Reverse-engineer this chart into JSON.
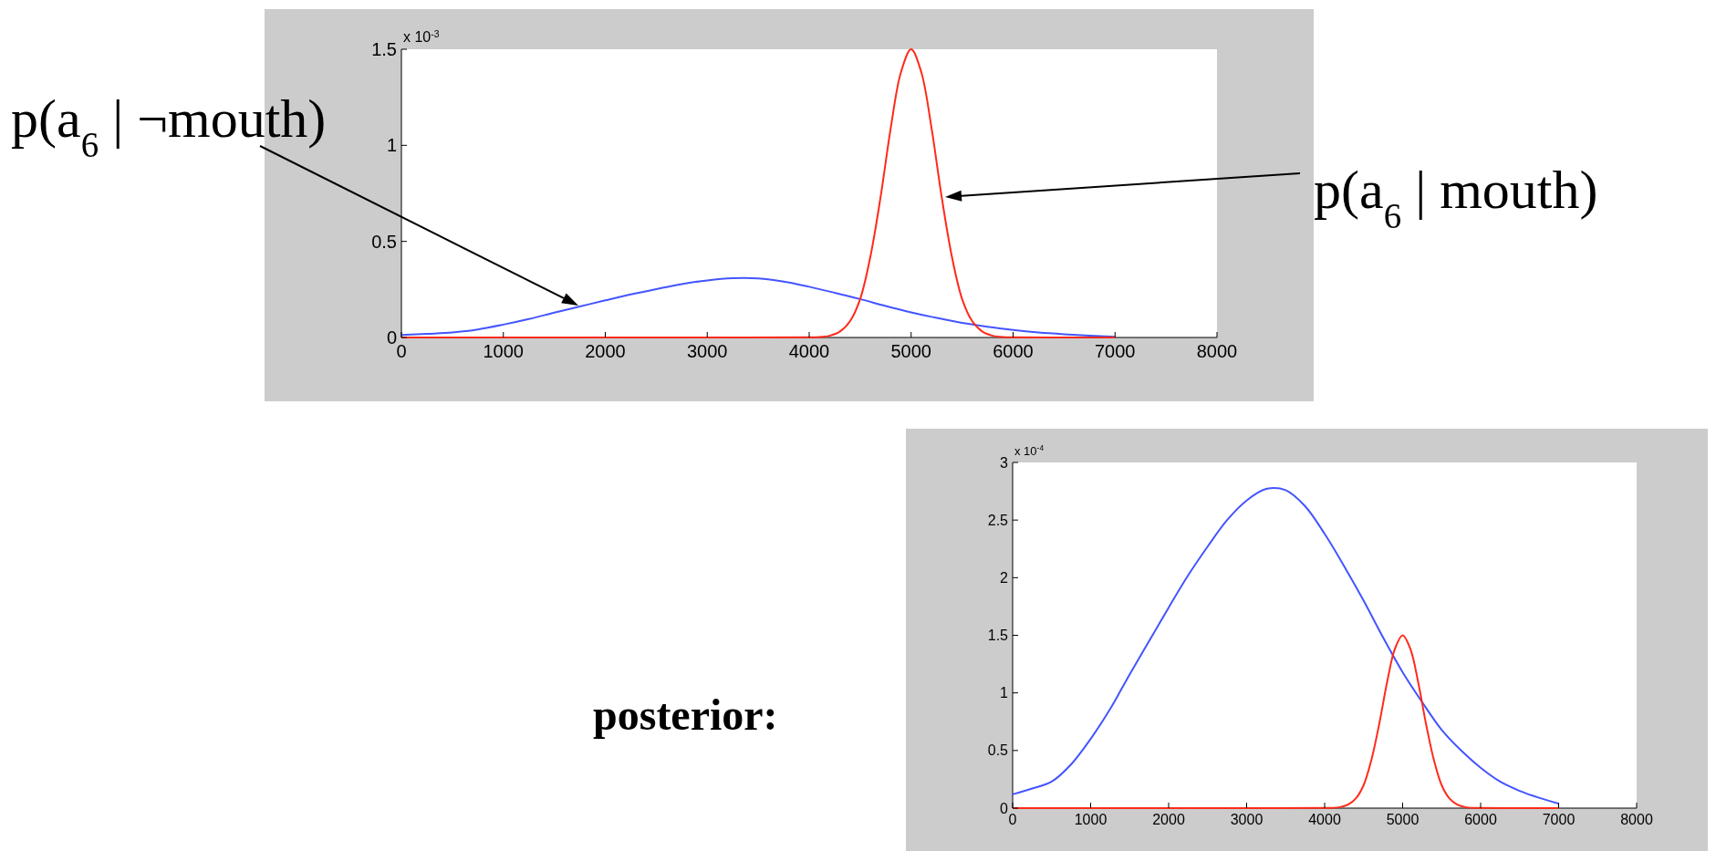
{
  "chart_data": [
    {
      "type": "line",
      "xlim": [
        0,
        8000
      ],
      "xticks": [
        0,
        1000,
        2000,
        3000,
        4000,
        5000,
        6000,
        7000,
        8000
      ],
      "ylim": [
        0,
        1.5
      ],
      "yticks": [
        0,
        0.5,
        1,
        1.5
      ],
      "annotations": [
        "x 10$^{-3}$",
        "p(a$_{6}$ | ¬mouth)",
        "p(a$_{6}$ | mouth)"
      ],
      "series": [
        {
          "color": "#4455ff",
          "x": [
            0,
            250,
            500,
            750,
            1000,
            1250,
            1500,
            1750,
            2000,
            2250,
            2500,
            2750,
            3000,
            3250,
            3500,
            3750,
            4000,
            4250,
            4500,
            4750,
            5000,
            5250,
            5500,
            5750,
            6000,
            6250,
            6500,
            6750,
            7000
          ],
          "values": [
            0.013,
            0.019,
            0.026,
            0.042,
            0.067,
            0.096,
            0.129,
            0.161,
            0.193,
            0.224,
            0.252,
            0.278,
            0.297,
            0.308,
            0.307,
            0.291,
            0.264,
            0.233,
            0.2,
            0.164,
            0.131,
            0.102,
            0.076,
            0.056,
            0.039,
            0.026,
            0.017,
            0.01,
            0.004
          ]
        },
        {
          "color": "#ff2a1a",
          "x": [
            0,
            1000,
            2000,
            3000,
            4000,
            4100,
            4200,
            4300,
            4400,
            4500,
            4600,
            4700,
            4800,
            4900,
            5000,
            5100,
            5200,
            5300,
            5400,
            5500,
            5600,
            5700,
            5800,
            5900,
            6000,
            6500,
            7000
          ],
          "values": [
            0,
            0,
            0,
            0,
            0.001,
            0.002,
            0.009,
            0.03,
            0.084,
            0.2,
            0.42,
            0.73,
            1.09,
            1.38,
            1.5,
            1.38,
            1.09,
            0.73,
            0.42,
            0.2,
            0.084,
            0.03,
            0.009,
            0.002,
            0.001,
            0,
            0
          ]
        }
      ]
    },
    {
      "type": "line",
      "title": "posterior:",
      "xlim": [
        0,
        8000
      ],
      "xticks": [
        0,
        1000,
        2000,
        3000,
        4000,
        5000,
        6000,
        7000,
        8000
      ],
      "ylim": [
        0,
        3
      ],
      "yticks": [
        0,
        0.5,
        1,
        1.5,
        2,
        2.5,
        3
      ],
      "annotations": [
        "x 10$^{-4}$"
      ],
      "series": [
        {
          "color": "#4455ff",
          "x": [
            0,
            250,
            500,
            750,
            1000,
            1250,
            1500,
            1750,
            2000,
            2250,
            2500,
            2750,
            3000,
            3250,
            3500,
            3750,
            4000,
            4250,
            4500,
            4750,
            5000,
            5250,
            5500,
            5750,
            6000,
            6250,
            6500,
            6750,
            7000
          ],
          "values": [
            0.12,
            0.17,
            0.23,
            0.38,
            0.6,
            0.86,
            1.16,
            1.45,
            1.74,
            2.02,
            2.27,
            2.5,
            2.67,
            2.77,
            2.76,
            2.62,
            2.38,
            2.1,
            1.8,
            1.48,
            1.18,
            0.92,
            0.68,
            0.5,
            0.35,
            0.23,
            0.15,
            0.09,
            0.04
          ]
        },
        {
          "color": "#ff2a1a",
          "x": [
            0,
            1000,
            2000,
            3000,
            4000,
            4100,
            4200,
            4300,
            4400,
            4500,
            4600,
            4700,
            4800,
            4900,
            5000,
            5100,
            5200,
            5300,
            5400,
            5500,
            5600,
            5700,
            5800,
            5900,
            6000,
            6500,
            7000
          ],
          "values": [
            0,
            0,
            0,
            0,
            0.001,
            0.002,
            0.009,
            0.03,
            0.084,
            0.2,
            0.42,
            0.73,
            1.09,
            1.38,
            1.5,
            1.38,
            1.09,
            0.73,
            0.42,
            0.2,
            0.084,
            0.03,
            0.009,
            0.002,
            0.001,
            0,
            0
          ]
        }
      ]
    }
  ]
}
